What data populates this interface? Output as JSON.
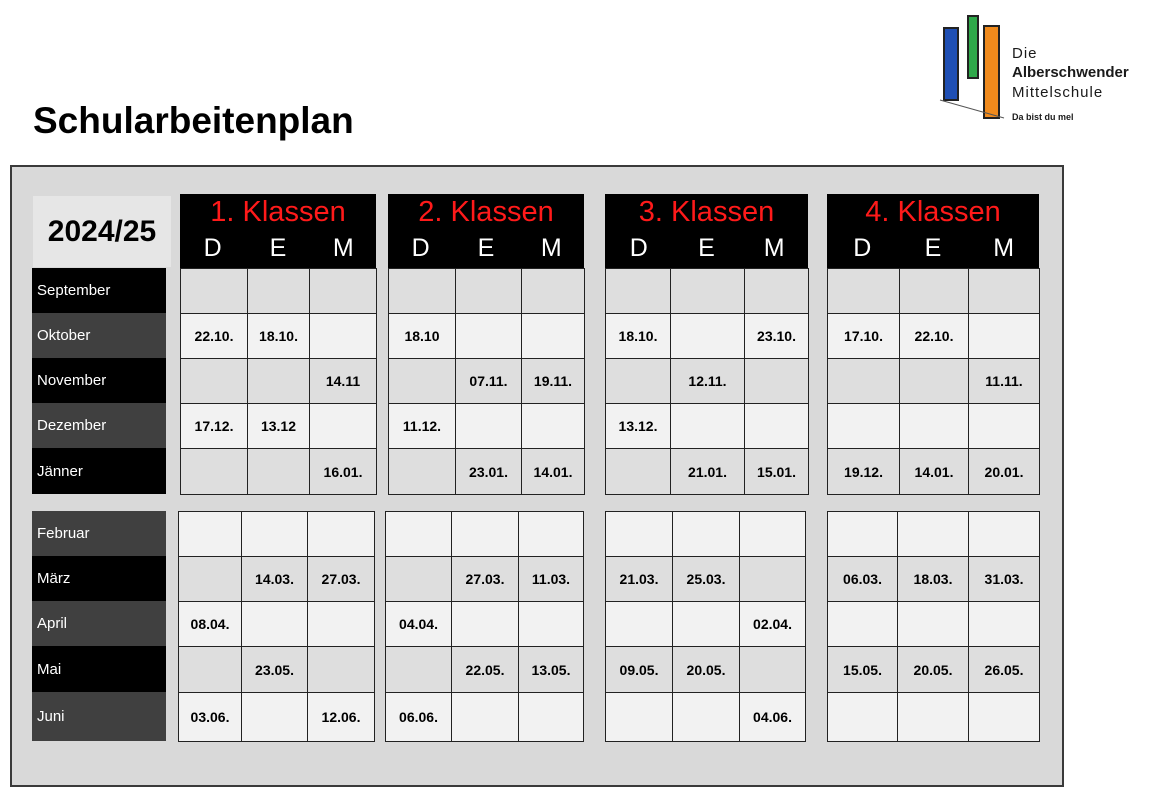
{
  "page_title": "Schularbeitenplan",
  "logo": {
    "line1": "Die",
    "line2": "Alberschwender",
    "line3": "Mittelschule",
    "slogan": "Da bist du mel"
  },
  "year": "2024/25",
  "subjects": [
    "D",
    "E",
    "M"
  ],
  "classes": [
    "1. Klassen",
    "2. Klassen",
    "3. Klassen",
    "4. Klassen"
  ],
  "colors": {
    "class_header_text": "#ff1a1a",
    "header_bg": "#000000",
    "frame_bg": "#d9d9d9"
  },
  "months": [
    "September",
    "Oktober",
    "November",
    "Dezember",
    "Jänner",
    "Februar",
    "März",
    "April",
    "Mai",
    "Juni"
  ],
  "grid": [
    [
      [
        "",
        "",
        ""
      ],
      [
        "",
        "",
        ""
      ],
      [
        "",
        "",
        ""
      ],
      [
        "",
        "",
        ""
      ]
    ],
    [
      [
        "22.10.",
        "18.10.",
        ""
      ],
      [
        "18.10",
        "",
        ""
      ],
      [
        "18.10.",
        "",
        "23.10."
      ],
      [
        "17.10.",
        "22.10.",
        ""
      ]
    ],
    [
      [
        "",
        "",
        "14.11"
      ],
      [
        "",
        "07.11.",
        "19.11."
      ],
      [
        "",
        "12.11.",
        ""
      ],
      [
        "",
        "",
        "11.11."
      ]
    ],
    [
      [
        "17.12.",
        "13.12",
        ""
      ],
      [
        "11.12.",
        "",
        ""
      ],
      [
        "13.12.",
        "",
        ""
      ],
      [
        "",
        "",
        ""
      ]
    ],
    [
      [
        "",
        "",
        "16.01."
      ],
      [
        "",
        "23.01.",
        "14.01."
      ],
      [
        "",
        "21.01.",
        "15.01."
      ],
      [
        "19.12.",
        "14.01.",
        "20.01."
      ]
    ],
    [
      [
        "",
        "",
        ""
      ],
      [
        "",
        "",
        ""
      ],
      [
        "",
        "",
        ""
      ],
      [
        "",
        "",
        ""
      ]
    ],
    [
      [
        "",
        "14.03.",
        "27.03."
      ],
      [
        "",
        "27.03.",
        "11.03."
      ],
      [
        "21.03.",
        "25.03.",
        ""
      ],
      [
        "06.03.",
        "18.03.",
        "31.03."
      ]
    ],
    [
      [
        "08.04.",
        "",
        ""
      ],
      [
        "04.04.",
        "",
        ""
      ],
      [
        "",
        "",
        "02.04."
      ],
      [
        "",
        "",
        ""
      ]
    ],
    [
      [
        "",
        "23.05.",
        ""
      ],
      [
        "",
        "22.05.",
        "13.05."
      ],
      [
        "09.05.",
        "20.05.",
        ""
      ],
      [
        "15.05.",
        "20.05.",
        "26.05."
      ]
    ],
    [
      [
        "03.06.",
        "",
        "12.06."
      ],
      [
        "06.06.",
        "",
        ""
      ],
      [
        "",
        "",
        "04.06."
      ],
      [
        "",
        "",
        ""
      ]
    ]
  ]
}
